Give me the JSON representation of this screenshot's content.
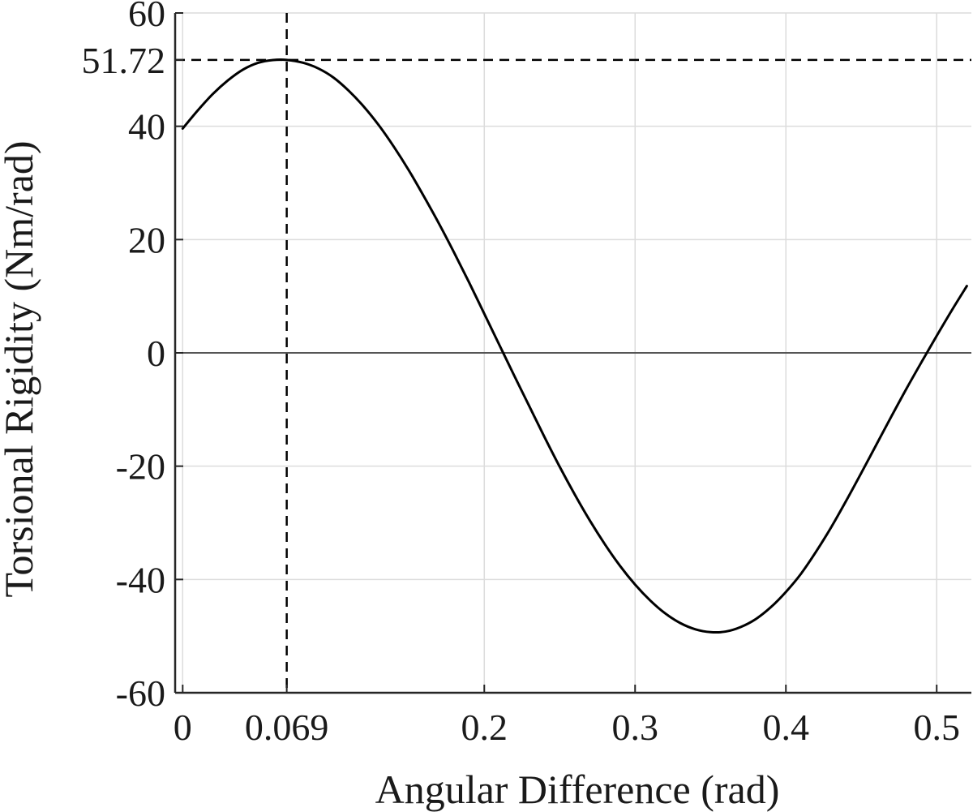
{
  "chart_data": {
    "type": "line",
    "xlabel": "Angular Difference (rad)",
    "ylabel": "Torsional Rigidity (Nm/rad)",
    "xlim": [
      -0.005,
      0.523
    ],
    "ylim": [
      -60,
      60
    ],
    "xticks": [
      0,
      0.069,
      0.2,
      0.3,
      0.4,
      0.5
    ],
    "xtick_labels": [
      "0",
      "0.069",
      "0.2",
      "0.3",
      "0.4",
      "0.5"
    ],
    "yticks": [
      -60,
      -40,
      -20,
      0,
      20,
      40,
      51.72,
      60
    ],
    "ytick_labels": [
      "-60",
      "-40",
      "-20",
      "0",
      "20",
      "40",
      "51.72",
      "60"
    ],
    "grid": true,
    "zero_line": true,
    "series": [
      {
        "color": "#000000",
        "x": [
          0.0,
          0.01,
          0.02,
          0.03,
          0.04,
          0.05,
          0.06,
          0.069,
          0.08,
          0.09,
          0.1,
          0.11,
          0.12,
          0.13,
          0.14,
          0.15,
          0.16,
          0.17,
          0.18,
          0.19,
          0.2,
          0.21,
          0.22,
          0.23,
          0.24,
          0.25,
          0.26,
          0.27,
          0.28,
          0.29,
          0.3,
          0.31,
          0.32,
          0.33,
          0.34,
          0.35,
          0.36,
          0.37,
          0.38,
          0.39,
          0.4,
          0.41,
          0.42,
          0.43,
          0.44,
          0.45,
          0.46,
          0.47,
          0.48,
          0.49,
          0.5,
          0.51,
          0.52
        ],
        "y": [
          39.6,
          42.8,
          45.7,
          48.1,
          50.0,
          51.2,
          51.7,
          51.72,
          51.2,
          50.2,
          48.6,
          46.3,
          43.5,
          40.2,
          36.4,
          32.2,
          27.6,
          22.8,
          17.7,
          12.4,
          6.9,
          1.4,
          -4.1,
          -9.5,
          -14.9,
          -20.1,
          -25.0,
          -29.6,
          -33.8,
          -37.6,
          -40.9,
          -43.7,
          -46.0,
          -47.7,
          -48.8,
          -49.3,
          -49.2,
          -48.4,
          -47.0,
          -44.9,
          -42.2,
          -39.0,
          -35.1,
          -30.8,
          -26.1,
          -21.2,
          -16.2,
          -11.2,
          -6.3,
          -1.6,
          3.0,
          7.5,
          11.8
        ]
      }
    ],
    "reference_lines": [
      {
        "orientation": "vertical",
        "x": 0.069,
        "style": "dashed"
      },
      {
        "orientation": "horizontal",
        "y": 51.72,
        "style": "dashed"
      }
    ]
  }
}
